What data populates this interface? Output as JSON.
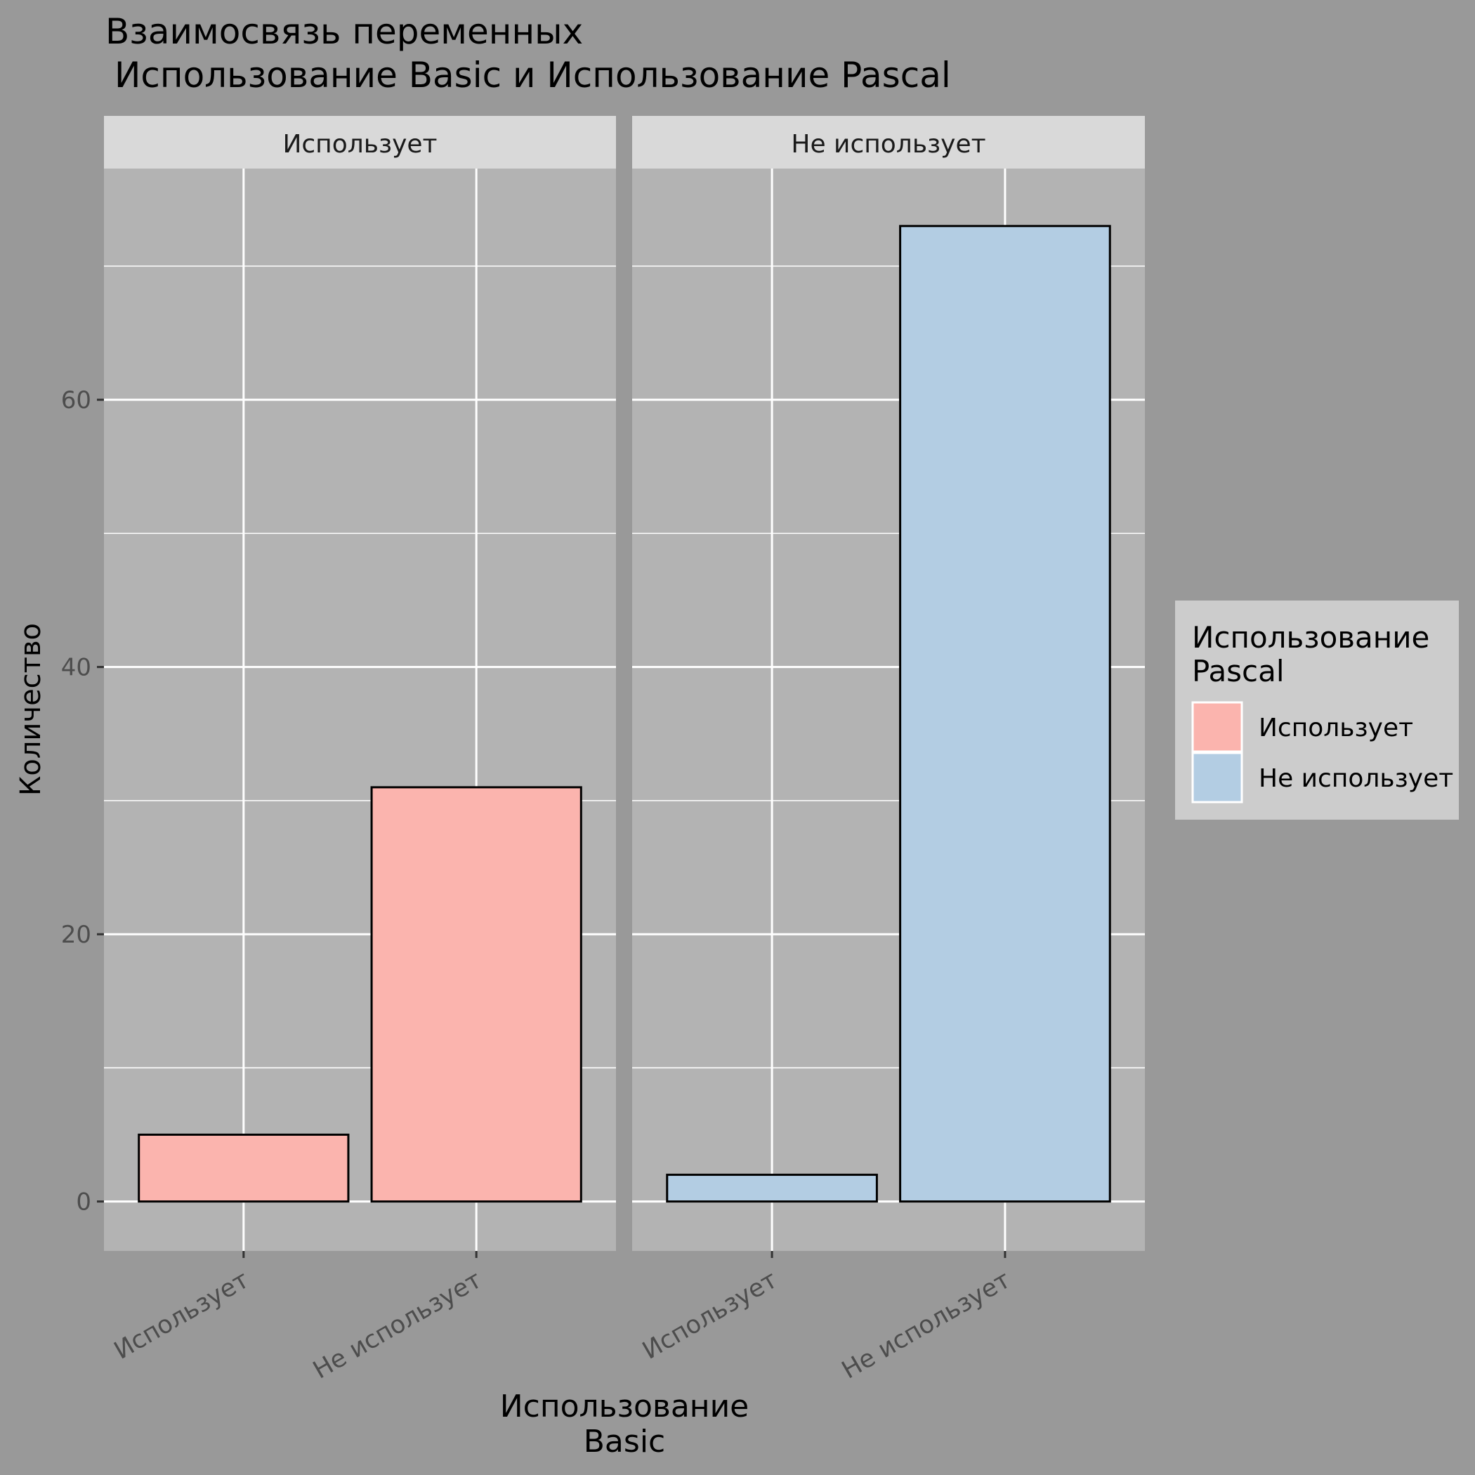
{
  "chart_data": {
    "type": "bar",
    "title_line1": "Взаимосвязь переменных",
    "title_line2": "Использование Basic и Использование Pascal",
    "xlabel_line1": "Использование",
    "xlabel_line2": "Basic",
    "ylabel": "Количество",
    "ylim": [
      -3.7,
      77.3
    ],
    "yticks": [
      0,
      20,
      40,
      60
    ],
    "ygrid_minor": [
      10,
      30,
      50,
      70
    ],
    "categories": [
      "Использует",
      "Не использует"
    ],
    "facets": [
      {
        "label": "Использует",
        "fill": "#FBB4AE",
        "values": [
          5,
          31
        ]
      },
      {
        "label": "Не использует",
        "fill": "#B3CDE3",
        "values": [
          2,
          73
        ]
      }
    ],
    "legend": {
      "title_line1": "Использование",
      "title_line2": "Pascal",
      "position": "right",
      "items": [
        {
          "label": "Использует",
          "color": "#FBB4AE"
        },
        {
          "label": "Не использует",
          "color": "#B3CDE3"
        }
      ]
    }
  },
  "colors": {
    "page_bg": "#999999",
    "panel_bg": "#B3B3B3",
    "strip_bg": "#D9D9D9",
    "legend_bg": "#CCCCCC",
    "grid": "#FFFFFF",
    "bar_outline": "#000000",
    "tick_text": "#4D4D4D"
  }
}
